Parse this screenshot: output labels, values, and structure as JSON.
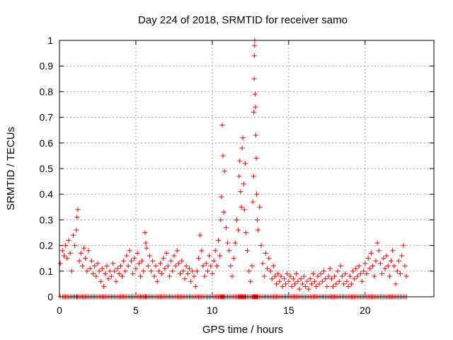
{
  "chart_data": {
    "type": "scatter",
    "title": "Day 224 of 2018, SRMTID for receiver samo",
    "xlabel": "GPS time / hours",
    "ylabel": "SRMTID / TECUs",
    "xlim": [
      0,
      24.5
    ],
    "ylim": [
      0,
      1
    ],
    "x_ticks": [
      0,
      5,
      10,
      15,
      20
    ],
    "x_tick_labels": [
      "0",
      "5",
      "10",
      "15",
      "20"
    ],
    "y_ticks": [
      0,
      0.1,
      0.2,
      0.3,
      0.4,
      0.5,
      0.6,
      0.7,
      0.8,
      0.9,
      1
    ],
    "y_tick_labels": [
      "0",
      "0.1",
      "0.2",
      "0.3",
      "0.4",
      "0.5",
      "0.6",
      "0.7",
      "0.8",
      "0.9",
      "1"
    ],
    "grid": true,
    "marker": "+",
    "marker_color": "#ff0000",
    "series": [
      {
        "name": "SRMTID",
        "points": [
          [
            0.05,
            0.13
          ],
          [
            0.2,
            0.18
          ],
          [
            0.3,
            0.16
          ],
          [
            0.4,
            0.2
          ],
          [
            0.5,
            0.15
          ],
          [
            0.6,
            0.22
          ],
          [
            0.7,
            0.17
          ],
          [
            0.8,
            0.1
          ],
          [
            0.9,
            0.24
          ],
          [
            1.0,
            0.2
          ],
          [
            1.1,
            0.26
          ],
          [
            1.15,
            0.31
          ],
          [
            1.2,
            0.34
          ],
          [
            1.3,
            0.14
          ],
          [
            1.4,
            0.17
          ],
          [
            1.5,
            0.12
          ],
          [
            1.6,
            0.19
          ],
          [
            1.7,
            0.15
          ],
          [
            1.8,
            0.1
          ],
          [
            1.9,
            0.18
          ],
          [
            2.0,
            0.11
          ],
          [
            2.1,
            0.14
          ],
          [
            2.2,
            0.09
          ],
          [
            2.3,
            0.12
          ],
          [
            2.4,
            0.08
          ],
          [
            2.5,
            0.13
          ],
          [
            2.6,
            0.1
          ],
          [
            2.7,
            0.06
          ],
          [
            2.8,
            0.11
          ],
          [
            2.9,
            0.04
          ],
          [
            3.0,
            0.09
          ],
          [
            3.1,
            0.12
          ],
          [
            3.2,
            0.07
          ],
          [
            3.3,
            0.1
          ],
          [
            3.4,
            0.08
          ],
          [
            3.5,
            0.13
          ],
          [
            3.6,
            0.1
          ],
          [
            3.7,
            0.06
          ],
          [
            3.8,
            0.11
          ],
          [
            3.9,
            0.09
          ],
          [
            4.0,
            0.12
          ],
          [
            4.1,
            0.08
          ],
          [
            4.2,
            0.14
          ],
          [
            4.3,
            0.1
          ],
          [
            4.4,
            0.16
          ],
          [
            4.5,
            0.12
          ],
          [
            4.6,
            0.18
          ],
          [
            4.7,
            0.14
          ],
          [
            4.8,
            0.09
          ],
          [
            4.9,
            0.15
          ],
          [
            5.0,
            0.11
          ],
          [
            5.1,
            0.17
          ],
          [
            5.2,
            0.13
          ],
          [
            5.3,
            0.08
          ],
          [
            5.4,
            0.14
          ],
          [
            5.5,
            0.1
          ],
          [
            5.6,
            0.25
          ],
          [
            5.65,
            0.21
          ],
          [
            5.7,
            0.19
          ],
          [
            5.8,
            0.12
          ],
          [
            5.9,
            0.16
          ],
          [
            6.0,
            0.1
          ],
          [
            6.1,
            0.14
          ],
          [
            6.2,
            0.08
          ],
          [
            6.3,
            0.12
          ],
          [
            6.4,
            0.06
          ],
          [
            6.5,
            0.1
          ],
          [
            6.6,
            0.13
          ],
          [
            6.7,
            0.09
          ],
          [
            6.8,
            0.15
          ],
          [
            6.9,
            0.11
          ],
          [
            7.0,
            0.17
          ],
          [
            7.1,
            0.12
          ],
          [
            7.2,
            0.08
          ],
          [
            7.3,
            0.14
          ],
          [
            7.4,
            0.1
          ],
          [
            7.5,
            0.16
          ],
          [
            7.6,
            0.12
          ],
          [
            7.7,
            0.18
          ],
          [
            7.8,
            0.13
          ],
          [
            7.9,
            0.09
          ],
          [
            8.0,
            0.14
          ],
          [
            8.1,
            0.1
          ],
          [
            8.2,
            0.07
          ],
          [
            8.3,
            0.12
          ],
          [
            8.4,
            0.09
          ],
          [
            8.5,
            0.11
          ],
          [
            8.6,
            0.06
          ],
          [
            8.7,
            0.1
          ],
          [
            8.8,
            0.08
          ],
          [
            8.9,
            0.04
          ],
          [
            9.0,
            0.1
          ],
          [
            9.1,
            0.15
          ],
          [
            9.2,
            0.24
          ],
          [
            9.3,
            0.18
          ],
          [
            9.4,
            0.12
          ],
          [
            9.5,
            0.08
          ],
          [
            9.6,
            0.13
          ],
          [
            9.7,
            0.1
          ],
          [
            9.8,
            0.16
          ],
          [
            9.9,
            0.12
          ],
          [
            10.0,
            0.09
          ],
          [
            10.1,
            0.14
          ],
          [
            10.2,
            0.18
          ],
          [
            10.3,
            0.12
          ],
          [
            10.4,
            0.22
          ],
          [
            10.5,
            0.16
          ],
          [
            10.55,
            0.3
          ],
          [
            10.6,
            0.39
          ],
          [
            10.65,
            0.67
          ],
          [
            10.7,
            0.55
          ],
          [
            10.75,
            0.33
          ],
          [
            10.8,
            0.49
          ],
          [
            10.9,
            0.27
          ],
          [
            11.0,
            0.21
          ],
          [
            11.1,
            0.18
          ],
          [
            11.2,
            0.12
          ],
          [
            11.3,
            0.08
          ],
          [
            11.4,
            0.15
          ],
          [
            11.5,
            0.21
          ],
          [
            11.6,
            0.3
          ],
          [
            11.7,
            0.26
          ],
          [
            11.75,
            0.47
          ],
          [
            11.8,
            0.53
          ],
          [
            11.85,
            0.41
          ],
          [
            11.9,
            0.35
          ],
          [
            11.95,
            0.58
          ],
          [
            12.0,
            0.62
          ],
          [
            12.05,
            0.44
          ],
          [
            12.1,
            0.34
          ],
          [
            12.15,
            0.52
          ],
          [
            12.2,
            0.25
          ],
          [
            12.3,
            0.18
          ],
          [
            12.4,
            0.1
          ],
          [
            12.5,
            0.06
          ],
          [
            12.6,
            0.12
          ],
          [
            12.65,
            0.37
          ],
          [
            12.7,
            0.47
          ],
          [
            12.72,
            0.72
          ],
          [
            12.74,
            0.85
          ],
          [
            12.75,
            0.94
          ],
          [
            12.77,
            0.98
          ],
          [
            12.78,
            1.0
          ],
          [
            12.8,
            0.79
          ],
          [
            12.82,
            0.74
          ],
          [
            12.85,
            0.63
          ],
          [
            12.88,
            0.54
          ],
          [
            12.9,
            0.4
          ],
          [
            12.95,
            0.3
          ],
          [
            13.0,
            0.26
          ],
          [
            13.1,
            0.35
          ],
          [
            13.2,
            0.2
          ],
          [
            13.3,
            0.13
          ],
          [
            13.4,
            0.08
          ],
          [
            13.5,
            0.17
          ],
          [
            13.6,
            0.11
          ],
          [
            13.7,
            0.15
          ],
          [
            13.8,
            0.1
          ],
          [
            13.9,
            0.07
          ],
          [
            14.0,
            0.12
          ],
          [
            14.1,
            0.08
          ],
          [
            14.2,
            0.05
          ],
          [
            14.3,
            0.09
          ],
          [
            14.4,
            0.06
          ],
          [
            14.5,
            0.08
          ],
          [
            14.6,
            0.04
          ],
          [
            14.7,
            0.07
          ],
          [
            14.8,
            0.05
          ],
          [
            14.9,
            0.09
          ],
          [
            15.0,
            0.06
          ],
          [
            15.1,
            0.08
          ],
          [
            15.2,
            0.04
          ],
          [
            15.3,
            0.07
          ],
          [
            15.4,
            0.05
          ],
          [
            15.5,
            0.09
          ],
          [
            15.6,
            0.06
          ],
          [
            15.7,
            0.03
          ],
          [
            15.8,
            0.07
          ],
          [
            15.9,
            0.05
          ],
          [
            16.0,
            0.08
          ],
          [
            16.1,
            0.04
          ],
          [
            16.2,
            0.06
          ],
          [
            16.3,
            0.03
          ],
          [
            16.4,
            0.07
          ],
          [
            16.5,
            0.05
          ],
          [
            16.6,
            0.09
          ],
          [
            16.7,
            0.06
          ],
          [
            16.8,
            0.04
          ],
          [
            16.9,
            0.08
          ],
          [
            17.0,
            0.05
          ],
          [
            17.1,
            0.09
          ],
          [
            17.2,
            0.06
          ],
          [
            17.3,
            0.1
          ],
          [
            17.4,
            0.07
          ],
          [
            17.5,
            0.04
          ],
          [
            17.6,
            0.08
          ],
          [
            17.7,
            0.11
          ],
          [
            17.8,
            0.07
          ],
          [
            17.9,
            0.04
          ],
          [
            18.0,
            0.08
          ],
          [
            18.1,
            0.05
          ],
          [
            18.2,
            0.1
          ],
          [
            18.3,
            0.06
          ],
          [
            18.4,
            0.12
          ],
          [
            18.5,
            0.08
          ],
          [
            18.6,
            0.05
          ],
          [
            18.7,
            0.09
          ],
          [
            18.8,
            0.06
          ],
          [
            18.9,
            0.04
          ],
          [
            19.0,
            0.08
          ],
          [
            19.1,
            0.05
          ],
          [
            19.2,
            0.1
          ],
          [
            19.3,
            0.07
          ],
          [
            19.4,
            0.11
          ],
          [
            19.5,
            0.08
          ],
          [
            19.6,
            0.12
          ],
          [
            19.7,
            0.09
          ],
          [
            19.8,
            0.06
          ],
          [
            19.9,
            0.1
          ],
          [
            20.0,
            0.13
          ],
          [
            20.1,
            0.09
          ],
          [
            20.2,
            0.15
          ],
          [
            20.3,
            0.11
          ],
          [
            20.4,
            0.17
          ],
          [
            20.5,
            0.12
          ],
          [
            20.6,
            0.08
          ],
          [
            20.7,
            0.14
          ],
          [
            20.8,
            0.21
          ],
          [
            20.9,
            0.18
          ],
          [
            21.0,
            0.13
          ],
          [
            21.1,
            0.09
          ],
          [
            21.2,
            0.15
          ],
          [
            21.3,
            0.11
          ],
          [
            21.4,
            0.16
          ],
          [
            21.5,
            0.12
          ],
          [
            21.6,
            0.08
          ],
          [
            21.7,
            0.14
          ],
          [
            21.8,
            0.18
          ],
          [
            21.9,
            0.12
          ],
          [
            22.0,
            0.05
          ],
          [
            22.1,
            0.1
          ],
          [
            22.2,
            0.14
          ],
          [
            22.3,
            0.09
          ],
          [
            22.4,
            0.16
          ],
          [
            22.5,
            0.2
          ],
          [
            22.6,
            0.12
          ],
          [
            22.7,
            0.08
          ]
        ]
      }
    ]
  }
}
